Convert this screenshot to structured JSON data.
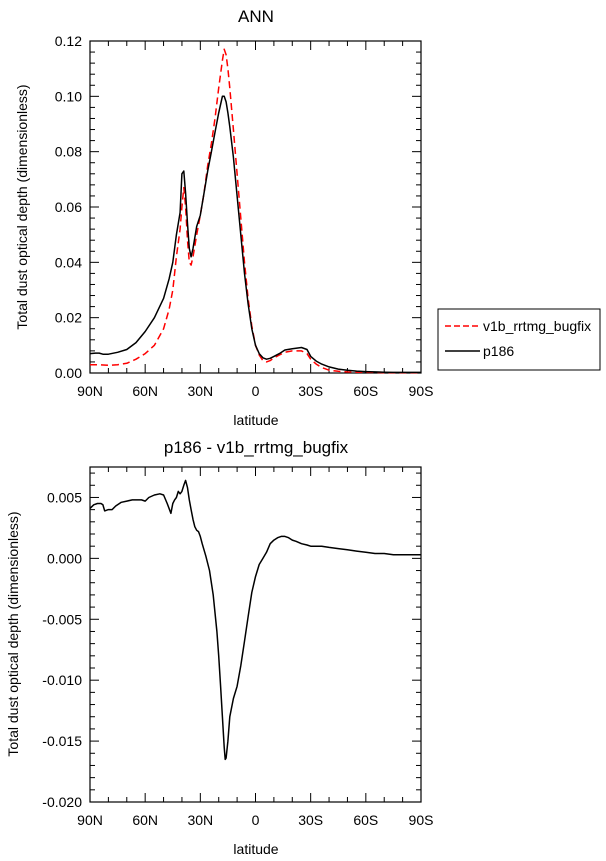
{
  "chart_data": [
    {
      "type": "line",
      "title": "ANN",
      "xlabel": "latitude",
      "ylabel": "Total dust optical depth (dimensionless)",
      "xlim": [
        90,
        -90
      ],
      "ylim": [
        0.0,
        0.12
      ],
      "xticks": [
        {
          "value": 90,
          "label": "90N"
        },
        {
          "value": 60,
          "label": "60N"
        },
        {
          "value": 30,
          "label": "30N"
        },
        {
          "value": 0,
          "label": "0"
        },
        {
          "value": -30,
          "label": "30S"
        },
        {
          "value": -60,
          "label": "60S"
        },
        {
          "value": -90,
          "label": "90S"
        }
      ],
      "yticks": [
        {
          "value": 0.0,
          "label": "0.00"
        },
        {
          "value": 0.02,
          "label": "0.02"
        },
        {
          "value": 0.04,
          "label": "0.04"
        },
        {
          "value": 0.06,
          "label": "0.06"
        },
        {
          "value": 0.08,
          "label": "0.08"
        },
        {
          "value": 0.1,
          "label": "0.10"
        },
        {
          "value": 0.12,
          "label": "0.12"
        }
      ],
      "grid": false,
      "legend": "right",
      "series": [
        {
          "name": "v1b_rrtmg_bugfix",
          "color": "#ff0000",
          "dash": "dashed",
          "x": [
            90,
            85,
            80,
            75,
            70,
            65,
            60,
            55,
            50,
            47,
            45,
            43,
            41,
            40,
            39,
            38,
            37,
            36,
            35,
            34,
            32,
            30,
            28,
            26,
            24,
            22,
            20,
            18,
            17,
            16,
            15,
            14,
            12,
            10,
            8,
            6,
            4,
            2,
            0,
            -2,
            -4,
            -6,
            -8,
            -10,
            -13,
            -16,
            -20,
            -25,
            -28,
            -30,
            -33,
            -36,
            -40,
            -45,
            -50,
            -55,
            -60,
            -65,
            -70,
            -75,
            -80,
            -85,
            -90
          ],
          "y": [
            0.003,
            0.003,
            0.0028,
            0.003,
            0.0035,
            0.005,
            0.007,
            0.01,
            0.016,
            0.023,
            0.03,
            0.042,
            0.052,
            0.06,
            0.067,
            0.06,
            0.048,
            0.04,
            0.039,
            0.042,
            0.05,
            0.057,
            0.065,
            0.075,
            0.083,
            0.092,
            0.103,
            0.113,
            0.117,
            0.115,
            0.11,
            0.103,
            0.088,
            0.072,
            0.056,
            0.04,
            0.027,
            0.017,
            0.01,
            0.0065,
            0.0045,
            0.004,
            0.0045,
            0.0055,
            0.0065,
            0.0075,
            0.008,
            0.008,
            0.007,
            0.005,
            0.0032,
            0.002,
            0.001,
            0.0006,
            0.0004,
            0.0003,
            0.0002,
            0.0002,
            0.0001,
            0.0001,
            0.0001,
            0.0001,
            0.0001
          ]
        },
        {
          "name": "p186",
          "color": "#000000",
          "dash": "solid",
          "x": [
            90,
            87,
            85,
            83,
            80,
            75,
            70,
            65,
            60,
            55,
            50,
            47,
            45,
            43,
            41,
            40,
            39,
            38,
            37,
            36,
            35,
            34,
            32,
            30,
            28,
            26,
            24,
            22,
            20,
            18,
            17,
            16,
            15,
            14,
            12,
            10,
            8,
            6,
            4,
            2,
            0,
            -2,
            -4,
            -6,
            -8,
            -10,
            -13,
            -16,
            -20,
            -25,
            -28,
            -30,
            -33,
            -36,
            -40,
            -45,
            -50,
            -55,
            -60,
            -65,
            -70,
            -75,
            -80,
            -85,
            -90
          ],
          "y": [
            0.007,
            0.0072,
            0.0072,
            0.0068,
            0.0068,
            0.0075,
            0.0085,
            0.011,
            0.015,
            0.02,
            0.027,
            0.034,
            0.04,
            0.05,
            0.058,
            0.072,
            0.073,
            0.065,
            0.054,
            0.045,
            0.042,
            0.045,
            0.053,
            0.057,
            0.065,
            0.073,
            0.08,
            0.087,
            0.094,
            0.1,
            0.1,
            0.098,
            0.094,
            0.089,
            0.078,
            0.064,
            0.05,
            0.036,
            0.025,
            0.016,
            0.01,
            0.007,
            0.0055,
            0.005,
            0.0053,
            0.006,
            0.007,
            0.0083,
            0.0088,
            0.0092,
            0.0085,
            0.006,
            0.0043,
            0.0032,
            0.0022,
            0.0014,
            0.001,
            0.0007,
            0.0005,
            0.0004,
            0.0003,
            0.0002,
            0.0002,
            0.0002,
            0.0002
          ]
        }
      ]
    },
    {
      "type": "line",
      "title": "p186 - v1b_rrtmg_bugfix",
      "xlabel": "latitude",
      "ylabel": "Total dust optical depth (dimensionless)",
      "xlim": [
        90,
        -90
      ],
      "ylim": [
        -0.02,
        0.0075
      ],
      "xticks": [
        {
          "value": 90,
          "label": "90N"
        },
        {
          "value": 60,
          "label": "60N"
        },
        {
          "value": 30,
          "label": "30N"
        },
        {
          "value": 0,
          "label": "0"
        },
        {
          "value": -30,
          "label": "30S"
        },
        {
          "value": -60,
          "label": "60S"
        },
        {
          "value": -90,
          "label": "90S"
        }
      ],
      "yticks": [
        {
          "value": 0.005,
          "label": "0.005"
        },
        {
          "value": 0.0,
          "label": "0.000"
        },
        {
          "value": -0.005,
          "label": "-0.005"
        },
        {
          "value": -0.01,
          "label": "-0.010"
        },
        {
          "value": -0.015,
          "label": "-0.015"
        },
        {
          "value": -0.02,
          "label": "-0.020"
        }
      ],
      "grid": false,
      "series": [
        {
          "color": "#000000",
          "dash": "solid",
          "x": [
            90,
            88,
            86,
            84,
            83,
            82,
            80,
            78,
            76,
            73,
            70,
            67,
            65,
            62,
            60,
            58,
            55,
            52,
            50,
            48,
            46,
            45,
            44,
            43,
            42,
            41,
            40,
            39,
            38,
            37,
            36,
            35,
            34,
            33,
            32,
            31,
            30,
            29,
            27,
            25,
            23,
            21,
            20,
            19,
            18,
            17,
            16.5,
            16,
            15,
            14,
            12,
            10,
            8,
            6,
            4,
            2,
            0,
            -2,
            -4,
            -6,
            -8,
            -10,
            -12,
            -14,
            -16,
            -18,
            -20,
            -22,
            -25,
            -28,
            -30,
            -33,
            -36,
            -40,
            -45,
            -50,
            -55,
            -60,
            -65,
            -70,
            -75,
            -80,
            -85,
            -90
          ],
          "y": [
            0.0041,
            0.0044,
            0.0045,
            0.0045,
            0.0044,
            0.0039,
            0.004,
            0.004,
            0.0043,
            0.0046,
            0.0047,
            0.0048,
            0.0048,
            0.0048,
            0.0047,
            0.005,
            0.0052,
            0.0053,
            0.0052,
            0.0045,
            0.0037,
            0.0045,
            0.0048,
            0.005,
            0.0055,
            0.0053,
            0.0055,
            0.006,
            0.0064,
            0.0058,
            0.0048,
            0.004,
            0.0032,
            0.0026,
            0.0023,
            0.0022,
            0.0018,
            0.0012,
            0.0002,
            -0.001,
            -0.003,
            -0.006,
            -0.008,
            -0.0105,
            -0.013,
            -0.0155,
            -0.0165,
            -0.0164,
            -0.015,
            -0.013,
            -0.0115,
            -0.0105,
            -0.0088,
            -0.0068,
            -0.0048,
            -0.0028,
            -0.0015,
            -0.0005,
            0.0,
            0.0005,
            0.0012,
            0.0015,
            0.0017,
            0.0018,
            0.0018,
            0.0017,
            0.0015,
            0.0014,
            0.0012,
            0.0011,
            0.001,
            0.001,
            0.001,
            0.0009,
            0.0008,
            0.0007,
            0.0006,
            0.0005,
            0.0004,
            0.0004,
            0.0003,
            0.0003,
            0.0003,
            0.0003
          ]
        }
      ]
    }
  ]
}
